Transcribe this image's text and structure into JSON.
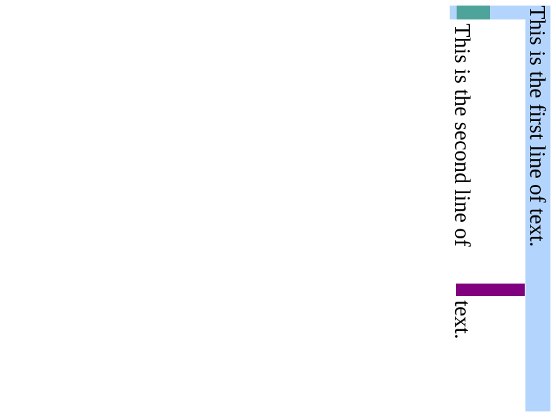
{
  "lines": {
    "first": "This is the first line of text.",
    "second_before": "This is the second line of",
    "second_after": "text."
  },
  "colors": {
    "highlight": "#b3d4fc",
    "teal_marker": "#4ea39a",
    "purple_marker": "#800080",
    "text": "#000000",
    "background": "#ffffff"
  }
}
